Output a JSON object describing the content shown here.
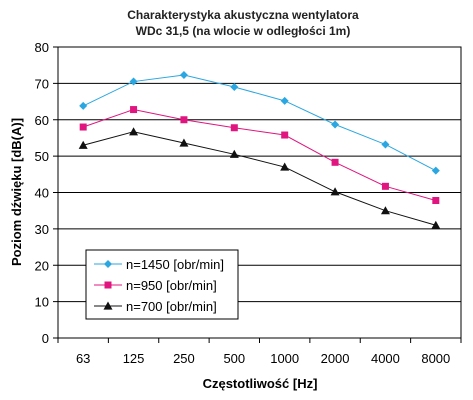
{
  "chart_data": {
    "type": "line",
    "title_line1": "Charakterystyka akustyczna wentylatora",
    "title_line2": "WDc 31,5 (na wlocie w odległości 1m)",
    "xlabel": "Częstotliwość [Hz]",
    "ylabel": "Poziom dźwięku [dB(A)]",
    "categories": [
      "63",
      "125",
      "250",
      "500",
      "1000",
      "2000",
      "4000",
      "8000"
    ],
    "ylim": [
      0,
      80
    ],
    "yticks": [
      0,
      10,
      20,
      30,
      40,
      50,
      60,
      70,
      80
    ],
    "grid": "horizontal",
    "legend_position": "lower-left",
    "series": [
      {
        "name": "n=1450 [obr/min]",
        "color": "#2aa6e0",
        "marker": "diamond",
        "values": [
          63.8,
          70.5,
          72.3,
          69.0,
          65.2,
          58.7,
          53.2,
          46.0
        ]
      },
      {
        "name": "n=950 [obr/min]",
        "color": "#e0157f",
        "marker": "square",
        "values": [
          58.0,
          62.8,
          60.0,
          57.8,
          55.8,
          48.3,
          41.7,
          37.8
        ]
      },
      {
        "name": "n=700 [obr/min]",
        "color": "#111111",
        "marker": "triangle",
        "values": [
          53.0,
          56.7,
          53.6,
          50.5,
          47.0,
          40.2,
          35.0,
          31.0
        ]
      }
    ]
  }
}
